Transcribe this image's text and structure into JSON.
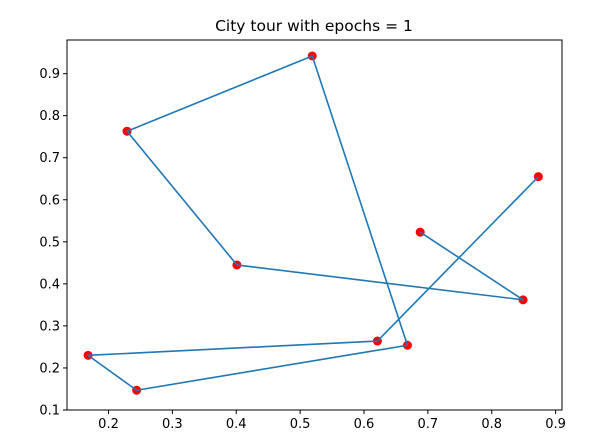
{
  "chart_data": {
    "type": "line",
    "title": "City tour with epochs = 1",
    "xlabel": "",
    "ylabel": "",
    "xlim": [
      0.135,
      0.91
    ],
    "ylim": [
      0.1,
      0.98
    ],
    "xticks": [
      0.2,
      0.3,
      0.4,
      0.5,
      0.6,
      0.7,
      0.8,
      0.9
    ],
    "xtick_labels": [
      "0.2",
      "0.3",
      "0.4",
      "0.5",
      "0.6",
      "0.7",
      "0.8",
      "0.9"
    ],
    "yticks": [
      0.1,
      0.2,
      0.3,
      0.4,
      0.5,
      0.6,
      0.7,
      0.8,
      0.9
    ],
    "ytick_labels": [
      "0.1",
      "0.2",
      "0.3",
      "0.4",
      "0.5",
      "0.6",
      "0.7",
      "0.8",
      "0.9"
    ],
    "grid": false,
    "colors": {
      "line": "#1f77b4",
      "markers": "#ff0000"
    },
    "series": [
      {
        "x": [
          0.688,
          0.849,
          0.401,
          0.229,
          0.519,
          0.668,
          0.244,
          0.168,
          0.621,
          0.873
        ],
        "y": [
          0.523,
          0.362,
          0.445,
          0.763,
          0.942,
          0.254,
          0.147,
          0.23,
          0.264,
          0.655
        ]
      }
    ],
    "points": {
      "x": [
        0.688,
        0.849,
        0.401,
        0.229,
        0.519,
        0.668,
        0.244,
        0.168,
        0.621,
        0.873
      ],
      "y": [
        0.523,
        0.362,
        0.445,
        0.763,
        0.942,
        0.254,
        0.147,
        0.23,
        0.264,
        0.655
      ]
    }
  }
}
